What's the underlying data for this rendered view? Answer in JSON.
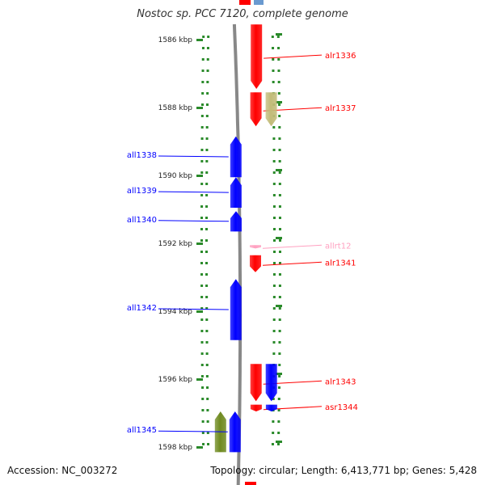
{
  "title": "Nostoc sp. PCC 7120, complete genome",
  "accession_text": "Accession: NC_003272",
  "summary_text": "Topology: circular; Length: 6,413,771 bp; Genes: 5,428",
  "colors": {
    "forward_gene": "#ff0000",
    "reverse_gene": "#0000ff",
    "rna_gene": "#ffa0c0",
    "olive_gene": "#c2bb78",
    "green_gene": "#6f8a20",
    "ticks": "#2a8a2a",
    "backbone": "#888888"
  },
  "scale": {
    "kbp_labels": [
      "1586 kbp",
      "1588 kbp",
      "1590 kbp",
      "1592 kbp",
      "1594 kbp",
      "1596 kbp",
      "1598 kbp"
    ],
    "start_kbp": 1586,
    "end_kbp": 1598
  },
  "genes": [
    {
      "name": "alr1336",
      "strand": "+",
      "start_kbp": 1585.6,
      "end_kbp": 1587.5,
      "color": "forward_gene",
      "track": "plus_a"
    },
    {
      "name": "alr1337",
      "strand": "+",
      "start_kbp": 1587.6,
      "end_kbp": 1588.6,
      "color": "forward_gene",
      "track": "plus_a"
    },
    {
      "name": "",
      "strand": "+",
      "start_kbp": 1587.6,
      "end_kbp": 1588.6,
      "color": "olive_gene",
      "track": "plus_b"
    },
    {
      "name": "all1338",
      "strand": "-",
      "start_kbp": 1588.9,
      "end_kbp": 1590.1,
      "color": "reverse_gene",
      "track": "minus_a"
    },
    {
      "name": "all1339",
      "strand": "-",
      "start_kbp": 1590.1,
      "end_kbp": 1591.0,
      "color": "reverse_gene",
      "track": "minus_a"
    },
    {
      "name": "all1340",
      "strand": "-",
      "start_kbp": 1591.1,
      "end_kbp": 1591.7,
      "color": "reverse_gene",
      "track": "minus_a"
    },
    {
      "name": "allrt12",
      "strand": "+",
      "start_kbp": 1592.1,
      "end_kbp": 1592.2,
      "color": "rna_gene",
      "track": "plus_a"
    },
    {
      "name": "alr1341",
      "strand": "+",
      "start_kbp": 1592.4,
      "end_kbp": 1592.9,
      "color": "forward_gene",
      "track": "plus_a"
    },
    {
      "name": "all1342",
      "strand": "-",
      "start_kbp": 1593.1,
      "end_kbp": 1594.9,
      "color": "reverse_gene",
      "track": "minus_a"
    },
    {
      "name": "alr1343",
      "strand": "+",
      "start_kbp": 1595.6,
      "end_kbp": 1596.7,
      "color": "forward_gene",
      "track": "plus_a"
    },
    {
      "name": "",
      "strand": "+",
      "start_kbp": 1595.6,
      "end_kbp": 1596.7,
      "color": "reverse_gene",
      "track": "plus_b"
    },
    {
      "name": "asr1344",
      "strand": "+",
      "start_kbp": 1596.8,
      "end_kbp": 1597.0,
      "color": "forward_gene",
      "track": "plus_a"
    },
    {
      "name": "",
      "strand": "+",
      "start_kbp": 1596.8,
      "end_kbp": 1597.0,
      "color": "reverse_gene",
      "track": "plus_b"
    },
    {
      "name": "",
      "strand": "-",
      "start_kbp": 1597.0,
      "end_kbp": 1598.2,
      "color": "green_gene",
      "track": "minus_b"
    },
    {
      "name": "all1345",
      "strand": "-",
      "start_kbp": 1597.0,
      "end_kbp": 1598.2,
      "color": "reverse_gene",
      "track": "minus_a"
    }
  ]
}
